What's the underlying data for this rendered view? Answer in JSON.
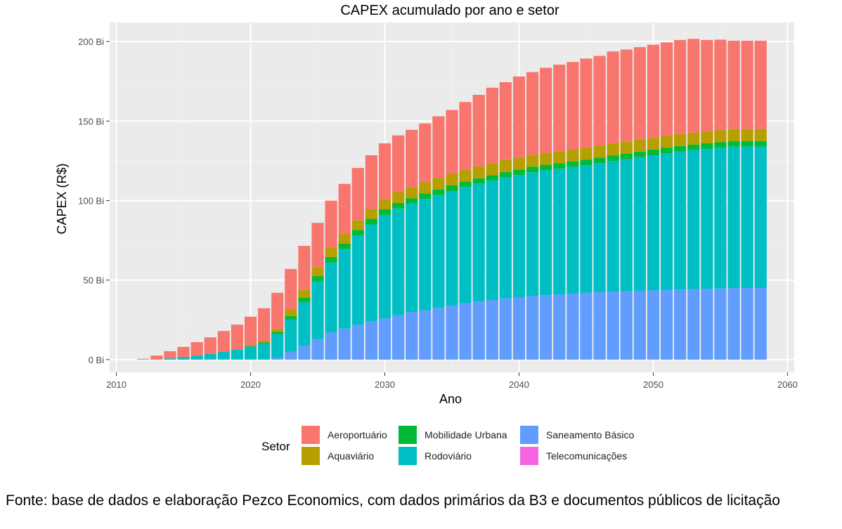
{
  "chart_data": {
    "type": "bar",
    "stacked": true,
    "title": "CAPEX acumulado por ano e setor",
    "xlabel": "Ano",
    "ylabel": "CAPEX (R$)",
    "xlim": [
      2009.5,
      2060.5
    ],
    "ylim": [
      -8,
      212
    ],
    "xticks": [
      2010,
      2020,
      2030,
      2040,
      2050,
      2060
    ],
    "xtick_labels": [
      "2010",
      "2020",
      "2030",
      "2040",
      "2050",
      "2060"
    ],
    "yticks": [
      0,
      50,
      100,
      150,
      200
    ],
    "ytick_labels": [
      "0 Bi",
      "50 Bi",
      "100 Bi",
      "150 Bi",
      "200 Bi"
    ],
    "grid": true,
    "legend_title": "Setor",
    "legend_position": "bottom",
    "x": [
      2012,
      2013,
      2014,
      2015,
      2016,
      2017,
      2018,
      2019,
      2020,
      2021,
      2022,
      2023,
      2024,
      2025,
      2026,
      2027,
      2028,
      2029,
      2030,
      2031,
      2032,
      2033,
      2034,
      2035,
      2036,
      2037,
      2038,
      2039,
      2040,
      2041,
      2042,
      2043,
      2044,
      2045,
      2046,
      2047,
      2048,
      2049,
      2050,
      2051,
      2052,
      2053,
      2054,
      2055,
      2056,
      2057,
      2058
    ],
    "series": [
      {
        "name": "Telecomunicações",
        "color": "#F564E3",
        "values": [
          0,
          0,
          0,
          0,
          0,
          0,
          0,
          0,
          0,
          0,
          0,
          0,
          0,
          0,
          0,
          0,
          0,
          0,
          0,
          0,
          0,
          0,
          0,
          0,
          0,
          0,
          0,
          0,
          0,
          0,
          0,
          0,
          0,
          0,
          0,
          0,
          0,
          0,
          0,
          0,
          0,
          0,
          0,
          0,
          0,
          0,
          0
        ]
      },
      {
        "name": "Saneamento Básico",
        "color": "#619CFF",
        "values": [
          0,
          0,
          0,
          0,
          0,
          0,
          0,
          0,
          0,
          0,
          1,
          5,
          9,
          13,
          17,
          19.5,
          22,
          24,
          26,
          28,
          30,
          31,
          32.5,
          34,
          35.5,
          36.5,
          37.5,
          38.5,
          39,
          40,
          40.5,
          41,
          41.5,
          42,
          42.5,
          42.8,
          43,
          43.3,
          43.5,
          43.8,
          44,
          44.2,
          44.5,
          44.7,
          45,
          45,
          45
        ]
      },
      {
        "name": "Rodoviário",
        "color": "#00BFC4",
        "values": [
          0,
          0,
          0.8,
          1.5,
          2.5,
          3.5,
          5,
          6.5,
          8,
          10,
          15,
          20,
          27,
          36,
          44,
          50,
          56,
          61,
          65,
          67,
          68,
          70,
          71,
          72,
          73,
          74,
          75,
          76,
          77,
          77.8,
          78.5,
          79,
          79.7,
          80.3,
          81,
          82,
          83,
          84,
          85,
          86,
          86.8,
          87.5,
          88,
          88.5,
          89,
          89,
          89
        ]
      },
      {
        "name": "Mobilidade Urbana",
        "color": "#00BA38",
        "values": [
          0,
          0,
          0,
          0,
          0,
          0,
          0,
          0,
          0.5,
          0.8,
          1.5,
          2.5,
          3,
          3.5,
          3.5,
          3.5,
          3.5,
          3.5,
          3.5,
          3.5,
          3.5,
          3.5,
          3.5,
          3.5,
          3.5,
          3.5,
          3.5,
          3.5,
          3.5,
          3.5,
          3.5,
          3.5,
          3.5,
          3.5,
          3.5,
          3.5,
          3.5,
          3.5,
          3.5,
          3.5,
          3.5,
          3.5,
          3.5,
          3.5,
          3.5,
          3.5,
          3.5
        ]
      },
      {
        "name": "Aquaviário",
        "color": "#B79F00",
        "values": [
          0,
          0,
          0,
          0,
          0,
          0,
          0,
          0,
          0.5,
          1,
          2,
          4,
          5,
          5.5,
          6,
          6,
          6,
          6.2,
          6.5,
          6.8,
          7,
          7,
          7.2,
          7.3,
          7.5,
          7.5,
          7.5,
          7.5,
          7.5,
          7.5,
          7.5,
          7.5,
          7.5,
          7.5,
          7.5,
          7.5,
          7.5,
          7.5,
          7.5,
          7.5,
          7.5,
          7.5,
          7.5,
          7.5,
          7.5,
          7.5,
          7.5
        ]
      },
      {
        "name": "Aeroportuário",
        "color": "#F8766D",
        "values": [
          0.5,
          2.5,
          4.5,
          6.5,
          8.5,
          10.5,
          13,
          15.5,
          18,
          20.5,
          22.5,
          25.5,
          27.5,
          28,
          29.5,
          31.5,
          33,
          33.8,
          35,
          35.7,
          36,
          37,
          38.8,
          40.2,
          42.5,
          45,
          47.5,
          49,
          51,
          52,
          53.5,
          54.5,
          55,
          56,
          56.5,
          58,
          58,
          58.2,
          58.5,
          58.7,
          59.2,
          59,
          57.5,
          57,
          55.5,
          55.5,
          55.5
        ]
      }
    ]
  },
  "legend": {
    "title": "Setor",
    "items": [
      {
        "label": "Aeroportuário",
        "color": "#F8766D"
      },
      {
        "label": "Aquaviário",
        "color": "#B79F00"
      },
      {
        "label": "Mobilidade Urbana",
        "color": "#00BA38"
      },
      {
        "label": "Rodoviário",
        "color": "#00BFC4"
      },
      {
        "label": "Saneamento Básico",
        "color": "#619CFF"
      },
      {
        "label": "Telecomunicações",
        "color": "#F564E3"
      }
    ]
  },
  "caption": "Fonte: base de dados e elaboração Pezco Economics, com dados primários da B3 e documentos públicos de licitação",
  "colors": {
    "panel_background": "#EBEBEB",
    "grid_major": "#FFFFFF",
    "grid_minor": "#F2F2F2"
  }
}
